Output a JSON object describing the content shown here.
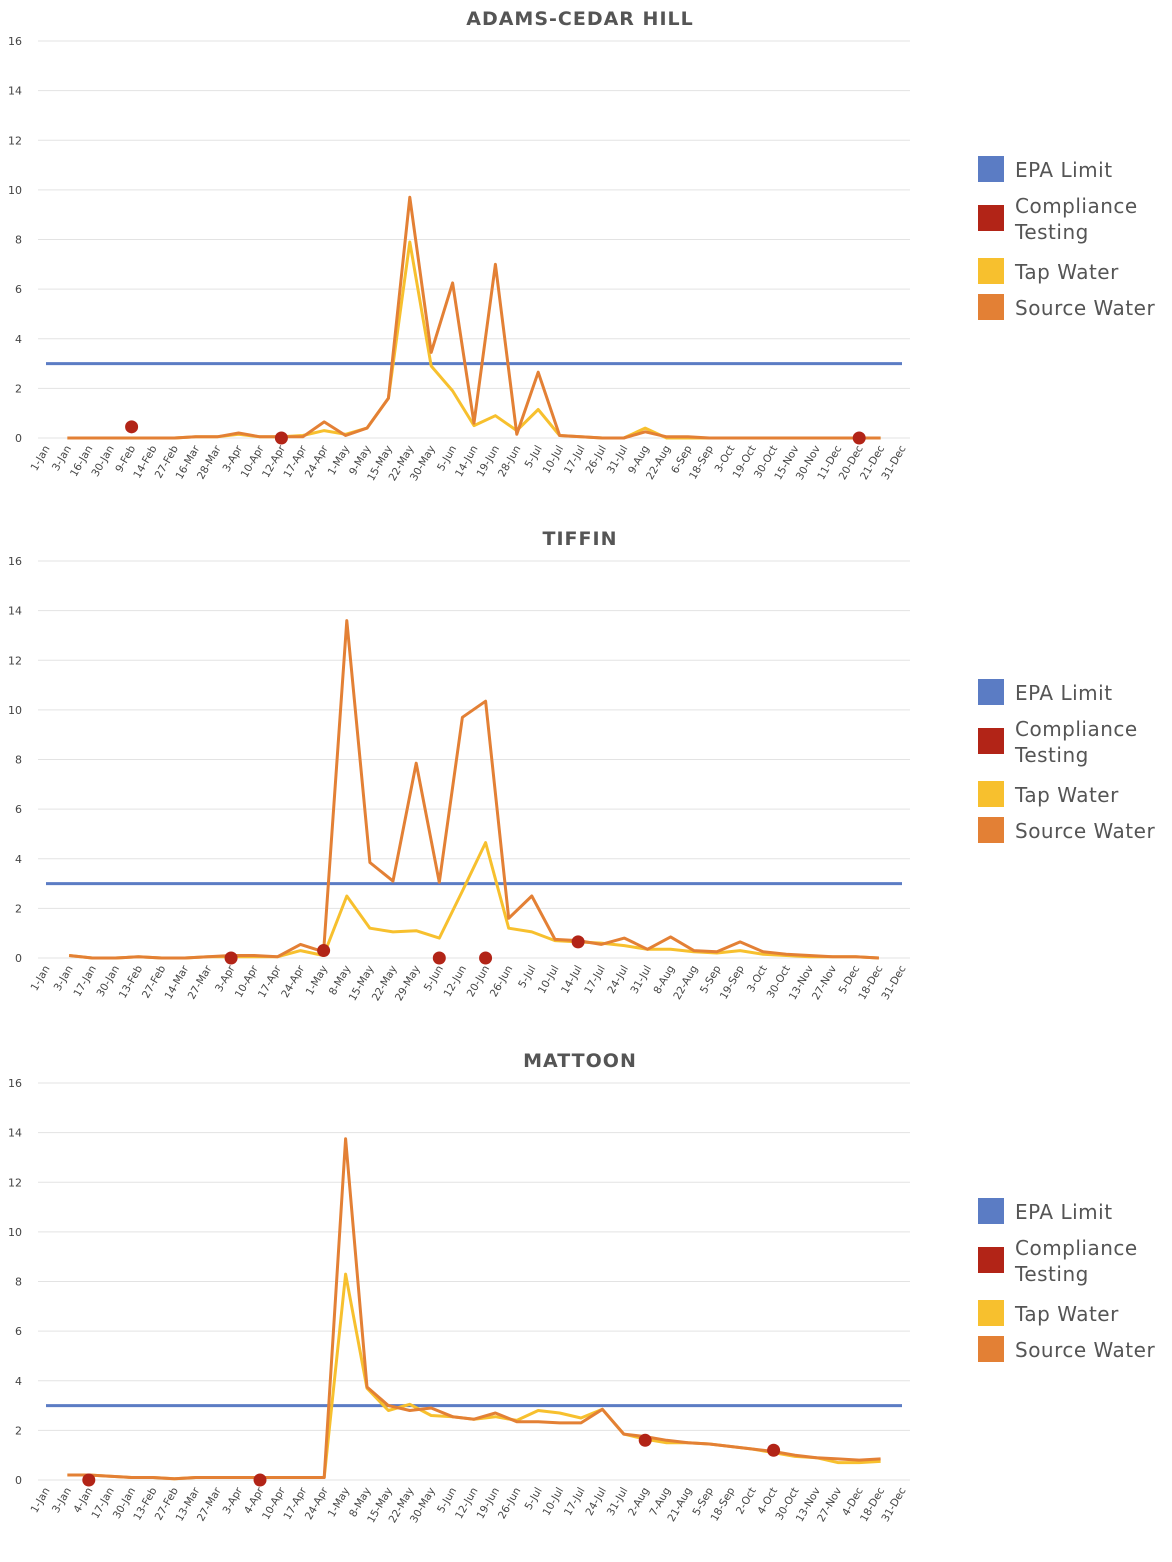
{
  "legend": {
    "epa": {
      "label": "EPA Limit",
      "color": "#5B7CC4"
    },
    "compliance": {
      "label": "Compliance\nTesting",
      "color": "#B22417"
    },
    "tap": {
      "label": "Tap Water",
      "color": "#F7C02E"
    },
    "source": {
      "label": "Source Water",
      "color": "#E38035"
    }
  },
  "chart_data": [
    {
      "type": "line",
      "title": "ADAMS-CEDAR HILL",
      "ylim": [
        0,
        16
      ],
      "yticks": [
        0,
        2,
        4,
        6,
        8,
        10,
        12,
        14,
        16
      ],
      "x": [
        "1-Jan",
        "3-Jan",
        "16-Jan",
        "30-Jan",
        "9-Feb",
        "14-Feb",
        "27-Feb",
        "16-Mar",
        "28-Mar",
        "3-Apr",
        "10-Apr",
        "12-Apr",
        "17-Apr",
        "24-Apr",
        "1-May",
        "9-May",
        "15-May",
        "22-May",
        "30-May",
        "5-Jun",
        "14-Jun",
        "19-Jun",
        "28-Jun",
        "5-Jul",
        "10-Jul",
        "17-Jul",
        "26-Jul",
        "31-Jul",
        "9-Aug",
        "22-Aug",
        "6-Sep",
        "18-Sep",
        "3-Oct",
        "19-Oct",
        "30-Oct",
        "15-Nov",
        "30-Nov",
        "11-Dec",
        "20-Dec",
        "21-Dec",
        "31-Dec"
      ],
      "epa_limit": 3,
      "series": [
        {
          "name": "Tap Water",
          "values": [
            null,
            0,
            0,
            0,
            0,
            0,
            0,
            0.05,
            0.05,
            0.15,
            0.05,
            0.05,
            0.1,
            0.3,
            0.15,
            0.4,
            1.6,
            7.9,
            2.9,
            1.9,
            0.5,
            0.9,
            0.3,
            1.15,
            0.1,
            0.05,
            0,
            0,
            0.4,
            0,
            0,
            0,
            0,
            0,
            0,
            0,
            0,
            0,
            0,
            0,
            null
          ]
        },
        {
          "name": "Source Water",
          "values": [
            null,
            0,
            0,
            0,
            0,
            0,
            0,
            0.05,
            0.05,
            0.2,
            0.05,
            0.05,
            0.05,
            0.65,
            0.1,
            0.4,
            1.6,
            9.7,
            3.45,
            6.25,
            0.6,
            7,
            0.15,
            2.65,
            0.1,
            0.05,
            0,
            0,
            0.25,
            0.05,
            0.05,
            0,
            0,
            0,
            0,
            0,
            0,
            0,
            0,
            0,
            null
          ]
        }
      ],
      "compliance": [
        {
          "x": "9-Feb",
          "y": 0.45
        },
        {
          "x": "12-Apr",
          "y": 0
        },
        {
          "x": "20-Dec",
          "y": 0
        }
      ]
    },
    {
      "type": "line",
      "title": "TIFFIN",
      "ylim": [
        0,
        16
      ],
      "yticks": [
        0,
        2,
        4,
        6,
        8,
        10,
        12,
        14,
        16
      ],
      "x": [
        "1-Jan",
        "3-Jan",
        "17-Jan",
        "30-Jan",
        "13-Feb",
        "27-Feb",
        "14-Mar",
        "27-Mar",
        "3-Apr",
        "10-Apr",
        "17-Apr",
        "24-Apr",
        "1-May",
        "8-May",
        "15-May",
        "22-May",
        "29-May",
        "5-Jun",
        "12-Jun",
        "20-Jun",
        "26-Jun",
        "5-Jul",
        "10-Jul",
        "14-Jul",
        "17-Jul",
        "24-Jul",
        "31-Jul",
        "8-Aug",
        "22-Aug",
        "5-Sep",
        "19-Sep",
        "3-Oct",
        "30-Oct",
        "13-Nov",
        "27-Nov",
        "5-Dec",
        "18-Dec",
        "31-Dec"
      ],
      "epa_limit": 3,
      "series": [
        {
          "name": "Tap Water",
          "values": [
            null,
            0.1,
            0,
            0,
            0.05,
            0,
            0,
            0.05,
            0.05,
            0.05,
            0.05,
            0.3,
            0.1,
            2.5,
            1.2,
            1.05,
            1.1,
            0.8,
            2.7,
            4.65,
            1.2,
            1.05,
            0.7,
            0.65,
            0.6,
            0.5,
            0.35,
            0.35,
            0.25,
            0.2,
            0.3,
            0.15,
            0.1,
            0.05,
            0.05,
            0.05,
            0,
            null
          ]
        },
        {
          "name": "Source Water",
          "values": [
            null,
            0.1,
            0,
            0,
            0.05,
            0,
            0,
            0.05,
            0.1,
            0.1,
            0.05,
            0.55,
            0.25,
            13.6,
            3.85,
            3.1,
            7.85,
            3.05,
            9.7,
            10.35,
            1.6,
            2.5,
            0.75,
            0.7,
            0.55,
            0.8,
            0.35,
            0.85,
            0.3,
            0.25,
            0.65,
            0.25,
            0.15,
            0.1,
            0.05,
            0.05,
            0,
            null
          ]
        }
      ],
      "compliance": [
        {
          "x": "3-Apr",
          "y": 0
        },
        {
          "x": "1-May",
          "y": 0.3
        },
        {
          "x": "5-Jun",
          "y": 0
        },
        {
          "x": "20-Jun",
          "y": 0
        },
        {
          "x": "14-Jul",
          "y": 0.65
        }
      ]
    },
    {
      "type": "line",
      "title": "MATTOON",
      "ylim": [
        0,
        16
      ],
      "yticks": [
        0,
        2,
        4,
        6,
        8,
        10,
        12,
        14,
        16
      ],
      "x": [
        "1-Jan",
        "3-Jan",
        "4-Jan",
        "17-Jan",
        "30-Jan",
        "13-Feb",
        "27-Feb",
        "13-Mar",
        "27-Mar",
        "3-Apr",
        "4-Apr",
        "10-Apr",
        "17-Apr",
        "24-Apr",
        "1-May",
        "8-May",
        "15-May",
        "22-May",
        "30-May",
        "5-Jun",
        "12-Jun",
        "19-Jun",
        "26-Jun",
        "5-Jul",
        "10-Jul",
        "17-Jul",
        "24-Jul",
        "31-Jul",
        "2-Aug",
        "7-Aug",
        "21-Aug",
        "5-Sep",
        "18-Sep",
        "2-Oct",
        "4-Oct",
        "30-Oct",
        "13-Nov",
        "27-Nov",
        "4-Dec",
        "18-Dec",
        "31-Dec"
      ],
      "epa_limit": 3,
      "series": [
        {
          "name": "Tap Water",
          "values": [
            null,
            0.2,
            0.2,
            0.15,
            0.1,
            0.1,
            0.05,
            0.1,
            0.1,
            0.1,
            0.1,
            0.1,
            0.1,
            0.1,
            8.3,
            3.7,
            2.8,
            3.05,
            2.6,
            2.55,
            2.45,
            2.55,
            2.4,
            2.8,
            2.7,
            2.5,
            2.85,
            1.85,
            1.65,
            1.5,
            1.5,
            1.45,
            1.35,
            1.25,
            1.1,
            0.95,
            0.9,
            0.7,
            0.7,
            0.75,
            null
          ]
        },
        {
          "name": "Source Water",
          "values": [
            null,
            0.2,
            0.2,
            0.15,
            0.1,
            0.1,
            0.05,
            0.1,
            0.1,
            0.1,
            0.1,
            0.1,
            0.1,
            0.1,
            13.75,
            3.75,
            3.0,
            2.8,
            2.9,
            2.55,
            2.45,
            2.7,
            2.35,
            2.35,
            2.3,
            2.3,
            2.85,
            1.85,
            1.75,
            1.6,
            1.5,
            1.45,
            1.35,
            1.25,
            1.15,
            1.0,
            0.9,
            0.85,
            0.8,
            0.85,
            null
          ]
        }
      ],
      "compliance": [
        {
          "x": "4-Jan",
          "y": 0
        },
        {
          "x": "4-Apr",
          "y": 0
        },
        {
          "x": "2-Aug",
          "y": 1.6
        },
        {
          "x": "4-Oct",
          "y": 1.2
        }
      ]
    }
  ]
}
